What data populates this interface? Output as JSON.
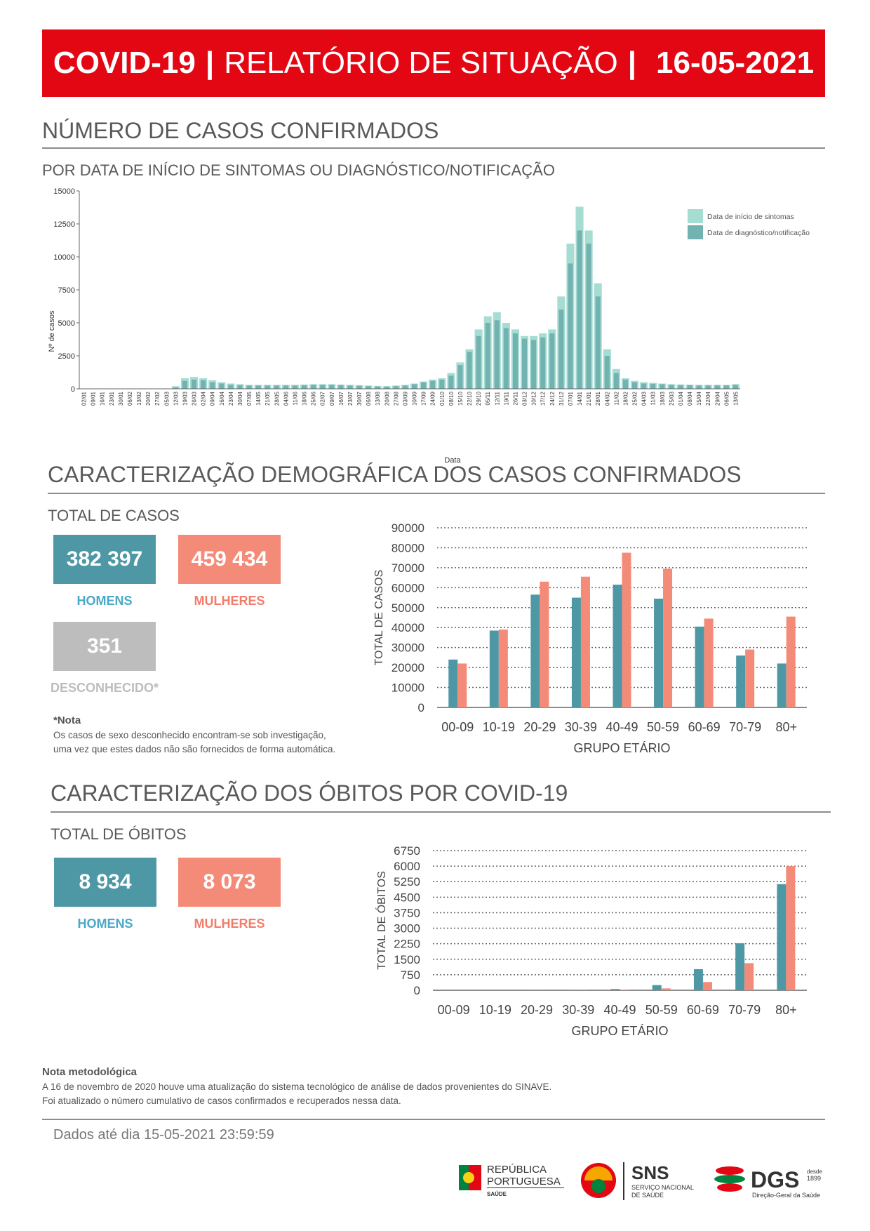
{
  "header": {
    "title_bold": "COVID-19",
    "title_mid": "RELATÓRIO DE SITUAÇÃO",
    "date": "16-05-2021"
  },
  "section1": {
    "title": "NÚMERO DE CASOS CONFIRMADOS",
    "subtitle": "POR DATA DE INÍCIO DE SINTOMAS OU DIAGNÓSTICO/NOTIFICAÇÃO",
    "legend": [
      "Data de início de sintomas",
      "Data de diagnóstico/notificação"
    ],
    "colors": {
      "symptoms": "#a6ddd3",
      "diagnosis": "#72b3b1"
    }
  },
  "section2": {
    "title": "CARACTERIZAÇÃO DEMOGRÁFICA DOS CASOS CONFIRMADOS",
    "subtitle": "TOTAL DE CASOS",
    "men_value": "382 397",
    "men_label": "HOMENS",
    "women_value": "459 434",
    "women_label": "MULHERES",
    "unknown_value": "351",
    "unknown_label": "DESCONHECIDO*",
    "note_title": "*Nota",
    "note_text_1": "Os casos de sexo desconhecido encontram-se sob investigação,",
    "note_text_2": "uma vez que estes dados não são fornecidos de forma automática."
  },
  "section3": {
    "title": "CARACTERIZAÇÃO DOS ÓBITOS POR COVID-19",
    "subtitle": "TOTAL DE ÓBITOS",
    "men_value": "8 934",
    "men_label": "HOMENS",
    "women_value": "8 073",
    "women_label": "MULHERES"
  },
  "methodology": {
    "title": "Nota metodológica",
    "line1": "A 16 de novembro de 2020 houve uma atualização do sistema tecnológico de análise de dados provenientes do SINAVE.",
    "line2": "Foi atualizado o número cumulativo de casos confirmados e recuperados nessa data."
  },
  "footer": {
    "data_until": "Dados até dia 15-05-2021 23:59:59"
  },
  "logos": {
    "republica_1": "REPÚBLICA",
    "republica_2": "PORTUGUESA",
    "republica_3": "SAÚDE",
    "sns": "SNS",
    "sns_sub1": "SERVIÇO NACIONAL",
    "sns_sub2": "DE SAÚDE",
    "dgs": "DGS",
    "dgs_since1": "desde",
    "dgs_since2": "1899",
    "dgs_sub": "Direção-Geral da Saúde"
  },
  "colors": {
    "men": "#4e98a6",
    "women": "#f48b78",
    "men_label": "#4aa8c8",
    "women_label": "#f47c6a",
    "banner": "#e30613"
  },
  "chart_data": [
    {
      "type": "bar",
      "xlabel": "Data",
      "ylabel": "Nº de casos",
      "ylim": [
        0,
        15000
      ],
      "yticks": [
        0,
        2500,
        5000,
        7500,
        10000,
        12500,
        15000
      ],
      "legend_position": "top-right",
      "xticks": [
        "02/01",
        "09/01",
        "16/01",
        "23/01",
        "30/01",
        "06/02",
        "13/02",
        "20/02",
        "27/02",
        "05/03",
        "12/03",
        "19/03",
        "26/03",
        "02/04",
        "09/04",
        "16/04",
        "23/04",
        "30/04",
        "07/05",
        "14/05",
        "21/05",
        "28/05",
        "04/06",
        "11/06",
        "18/06",
        "25/06",
        "02/07",
        "09/07",
        "16/07",
        "23/07",
        "30/07",
        "06/08",
        "13/08",
        "20/08",
        "27/08",
        "03/09",
        "10/09",
        "17/09",
        "24/09",
        "01/10",
        "08/10",
        "15/10",
        "22/10",
        "29/10",
        "05/11",
        "12/11",
        "19/11",
        "26/11",
        "03/12",
        "10/12",
        "17/12",
        "24/12",
        "31/12",
        "07/01",
        "14/01",
        "21/01",
        "28/01",
        "04/02",
        "11/02",
        "18/02",
        "25/02",
        "04/03",
        "11/03",
        "18/03",
        "25/03",
        "01/04",
        "08/04",
        "15/04",
        "22/04",
        "29/04",
        "06/05",
        "13/05"
      ],
      "series": [
        {
          "name": "Data de início de sintomas",
          "values": [
            0,
            0,
            0,
            0,
            0,
            0,
            0,
            0,
            0,
            0,
            200,
            800,
            900,
            800,
            650,
            500,
            400,
            350,
            300,
            300,
            300,
            300,
            300,
            300,
            320,
            350,
            350,
            350,
            320,
            300,
            280,
            250,
            220,
            200,
            250,
            300,
            400,
            550,
            700,
            800,
            1200,
            2000,
            3000,
            4500,
            5500,
            5800,
            5000,
            4500,
            4000,
            4000,
            4200,
            4500,
            7000,
            11000,
            13800,
            12000,
            8000,
            3000,
            1500,
            800,
            600,
            500,
            450,
            400,
            350,
            330,
            320,
            300,
            300,
            300,
            300,
            350
          ]
        },
        {
          "name": "Data de diagnóstico/notificação",
          "values": [
            0,
            0,
            0,
            0,
            0,
            0,
            0,
            0,
            0,
            0,
            100,
            600,
            700,
            650,
            500,
            400,
            300,
            280,
            250,
            250,
            250,
            250,
            250,
            250,
            280,
            300,
            300,
            300,
            280,
            250,
            230,
            200,
            180,
            170,
            200,
            250,
            350,
            500,
            600,
            700,
            1000,
            1800,
            2800,
            4000,
            5000,
            5200,
            4600,
            4200,
            3800,
            3700,
            3900,
            4200,
            6000,
            9500,
            12000,
            11000,
            7000,
            2500,
            1200,
            700,
            500,
            400,
            380,
            350,
            300,
            280,
            270,
            260,
            260,
            260,
            260,
            300
          ]
        }
      ]
    },
    {
      "type": "bar",
      "xlabel": "GRUPO ETÁRIO",
      "ylabel": "TOTAL DE CASOS",
      "ylim": [
        0,
        90000
      ],
      "yticks": [
        0,
        10000,
        20000,
        30000,
        40000,
        50000,
        60000,
        70000,
        80000,
        90000
      ],
      "grid": true,
      "categories": [
        "00-09",
        "10-19",
        "20-29",
        "30-39",
        "40-49",
        "50-59",
        "60-69",
        "70-79",
        "80+"
      ],
      "series": [
        {
          "values": [
            24000,
            38500,
            56500,
            55000,
            61500,
            54500,
            40500,
            26000,
            22000
          ]
        },
        {
          "values": [
            22000,
            39000,
            63000,
            65500,
            77500,
            69500,
            44500,
            29000,
            45500
          ]
        }
      ]
    },
    {
      "type": "bar",
      "xlabel": "GRUPO ETÁRIO",
      "ylabel": "TOTAL DE ÓBITOS",
      "ylim": [
        0,
        6750
      ],
      "yticks": [
        0,
        750,
        1500,
        2250,
        3000,
        3750,
        4500,
        5250,
        6000,
        6750
      ],
      "grid": true,
      "categories": [
        "00-09",
        "10-19",
        "20-29",
        "30-39",
        "40-49",
        "50-59",
        "60-69",
        "70-79",
        "80+"
      ],
      "series": [
        {
          "values": [
            0,
            0,
            5,
            15,
            60,
            250,
            1020,
            2270,
            5130
          ]
        },
        {
          "values": [
            0,
            0,
            3,
            8,
            30,
            90,
            400,
            1310,
            6000
          ]
        }
      ]
    }
  ]
}
